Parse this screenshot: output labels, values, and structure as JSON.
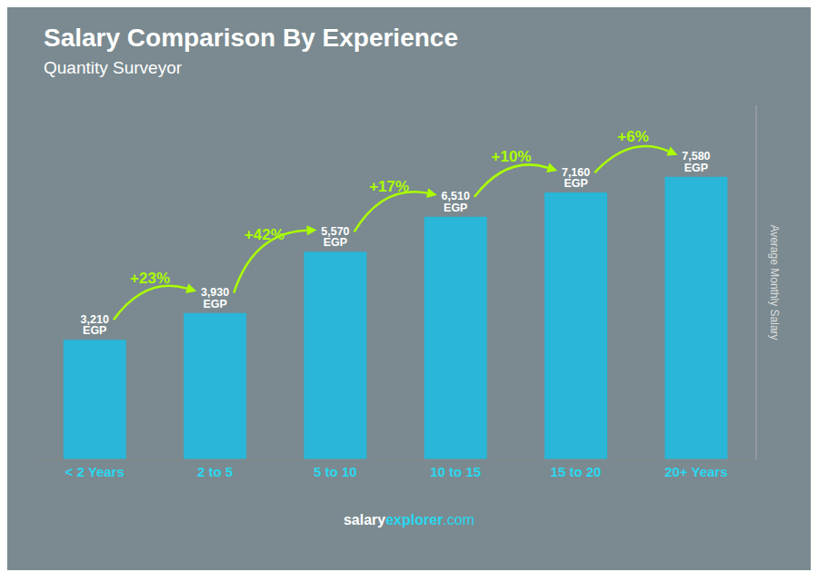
{
  "chart_data": {
    "type": "bar",
    "title": "Salary Comparison By Experience",
    "subtitle": "Quantity Surveyor",
    "ylabel": "Average Monthly Salary",
    "categories": [
      "< 2 Years",
      "2 to 5",
      "5 to 10",
      "10 to 15",
      "15 to 20",
      "20+ Years"
    ],
    "values": [
      3210,
      3930,
      5570,
      6510,
      7160,
      7580
    ],
    "value_labels": [
      "3,210 EGP",
      "3,930 EGP",
      "5,570 EGP",
      "6,510 EGP",
      "7,160 EGP",
      "7,580 EGP"
    ],
    "data_labels": true,
    "annotations": [
      {
        "text": "+23%",
        "from": "< 2 Years",
        "to": "2 to 5"
      },
      {
        "text": "+42%",
        "from": "2 to 5",
        "to": "5 to 10"
      },
      {
        "text": "+17%",
        "from": "5 to 10",
        "to": "10 to 15"
      },
      {
        "text": "+10%",
        "from": "10 to 15",
        "to": "15 to 20"
      },
      {
        "text": "+6%",
        "from": "15 to 20",
        "to": "20+ Years"
      }
    ],
    "watermark": [
      "salary",
      "explorer",
      ".com"
    ],
    "color": "#29b6d8",
    "ylim": [
      0,
      9500
    ],
    "tick_labels": "x",
    "grid": false
  }
}
